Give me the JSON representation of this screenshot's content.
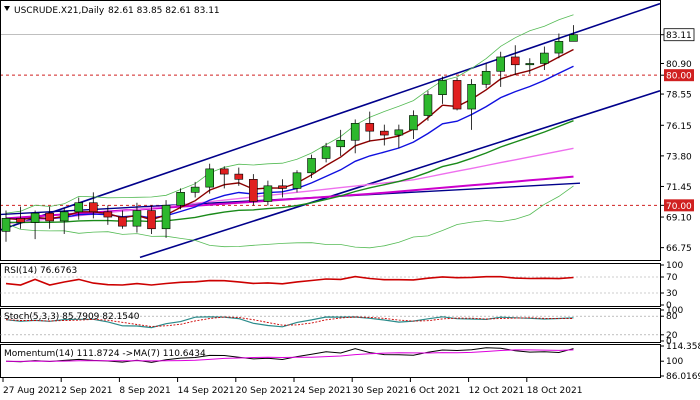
{
  "header": {
    "symbol": "USCRUDE.X21,Daily",
    "ohlc": "82.61 83.85 82.61 83.11"
  },
  "colors": {
    "bull": "#2db82d",
    "bear": "#e02020",
    "level": "#d02020",
    "channel": "#00008b",
    "ma_fast": "#8b0000",
    "ma_mid": "#1010e0",
    "ma_slow": "#1a8a1a",
    "ma_pink": "#ee70ee",
    "ma_magenta": "#cc00cc",
    "bollinger": "#55bb55",
    "rsi": "#cc0000",
    "stoch_main": "#2a8a8a",
    "stoch_signal": "#cc0000",
    "momentum": "#000000",
    "momentum_ma": "#dd00dd"
  },
  "price_axis": {
    "ylim": [
      65.8,
      85.7
    ],
    "ticks": [
      "83.11",
      "80.90",
      "80.00",
      "78.55",
      "76.15",
      "73.80",
      "71.45",
      "70.00",
      "69.10",
      "66.75"
    ]
  },
  "levels": [
    {
      "label": "80.00",
      "value": 80.0
    },
    {
      "label": "70.00",
      "value": 70.0
    }
  ],
  "current_price": {
    "label": "83.11",
    "value": 83.11
  },
  "date_axis": {
    "labels": [
      "27 Aug 2021",
      "2 Sep 2021",
      "8 Sep 2021",
      "14 Sep 2021",
      "20 Sep 2021",
      "24 Sep 2021",
      "30 Sep 2021",
      "6 Oct 2021",
      "12 Oct 2021",
      "18 Oct 2021"
    ]
  },
  "indicators": {
    "rsi": {
      "label": "RSI(14) 76.6763",
      "ticks": [
        "100",
        "70",
        "30",
        "0"
      ],
      "current": 76.68
    },
    "stoch": {
      "label": "Stoch(5,3,3) 85.7909 82.1540",
      "ticks": [
        "100",
        "80",
        "20",
        "0"
      ],
      "current_main": 85.79,
      "current_signal": 82.15
    },
    "momentum": {
      "label": "Momentum(14) 111.8724 ->MA(7) 110.6434",
      "ticks": [
        "114.3586",
        "100",
        "86.0169"
      ],
      "current": 111.87,
      "current_ma": 110.64
    }
  },
  "chart_data": {
    "type": "candlestick",
    "symbol": "USCRUDE.X21",
    "timeframe": "Daily",
    "ohlc": [
      [
        68.0,
        69.6,
        67.2,
        69.0
      ],
      [
        69.0,
        69.9,
        68.2,
        68.7
      ],
      [
        68.7,
        69.6,
        67.4,
        69.4
      ],
      [
        69.4,
        69.9,
        68.2,
        68.8
      ],
      [
        68.8,
        69.8,
        67.8,
        69.5
      ],
      [
        69.5,
        70.6,
        68.9,
        70.2
      ],
      [
        70.2,
        71.0,
        69.0,
        69.5
      ],
      [
        69.5,
        70.0,
        68.5,
        69.1
      ],
      [
        69.1,
        69.6,
        68.2,
        68.4
      ],
      [
        68.4,
        70.2,
        67.9,
        69.6
      ],
      [
        69.6,
        70.0,
        67.8,
        68.2
      ],
      [
        68.2,
        70.4,
        67.5,
        70.0
      ],
      [
        70.0,
        71.3,
        69.7,
        71.0
      ],
      [
        71.0,
        71.8,
        70.6,
        71.4
      ],
      [
        71.4,
        73.2,
        70.9,
        72.8
      ],
      [
        72.8,
        73.0,
        71.3,
        72.4
      ],
      [
        72.4,
        72.9,
        71.5,
        72.0
      ],
      [
        72.0,
        72.4,
        70.0,
        70.3
      ],
      [
        70.3,
        71.9,
        70.0,
        71.5
      ],
      [
        71.5,
        72.0,
        70.6,
        71.3
      ],
      [
        71.3,
        72.7,
        71.0,
        72.5
      ],
      [
        72.5,
        73.9,
        72.1,
        73.6
      ],
      [
        73.6,
        74.8,
        73.3,
        74.5
      ],
      [
        74.5,
        75.8,
        73.8,
        75.0
      ],
      [
        75.0,
        76.6,
        74.0,
        76.3
      ],
      [
        76.3,
        77.2,
        74.9,
        75.7
      ],
      [
        75.7,
        76.2,
        74.6,
        75.4
      ],
      [
        75.4,
        76.2,
        74.4,
        75.8
      ],
      [
        75.8,
        77.3,
        75.1,
        76.9
      ],
      [
        76.9,
        78.8,
        76.5,
        78.5
      ],
      [
        78.5,
        79.9,
        77.8,
        79.6
      ],
      [
        79.6,
        79.8,
        77.3,
        77.4
      ],
      [
        77.4,
        79.7,
        75.8,
        79.3
      ],
      [
        79.3,
        80.9,
        79.0,
        80.3
      ],
      [
        80.3,
        81.8,
        79.1,
        81.4
      ],
      [
        81.4,
        82.3,
        80.0,
        80.8
      ],
      [
        80.8,
        81.3,
        80.1,
        80.9
      ],
      [
        80.9,
        82.2,
        80.4,
        81.7
      ],
      [
        81.7,
        83.2,
        81.3,
        82.6
      ],
      [
        82.6,
        83.85,
        82.61,
        83.11
      ]
    ]
  }
}
